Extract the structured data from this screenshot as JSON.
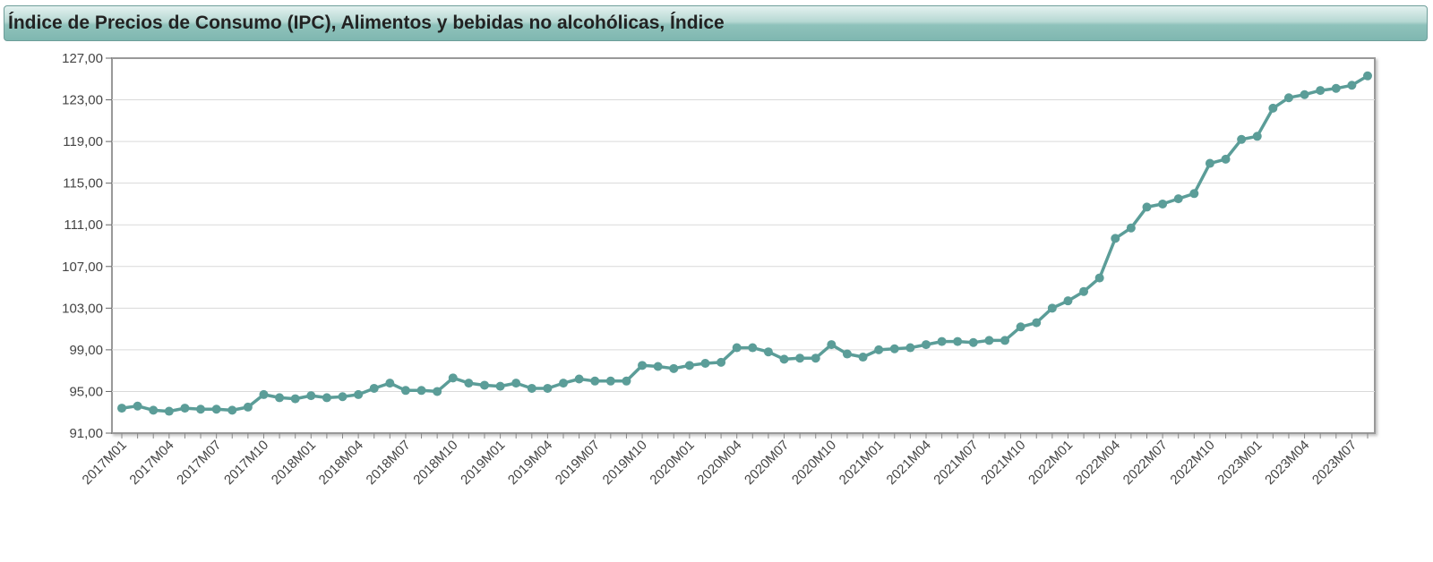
{
  "header": {
    "title": "Índice de Precios de Consumo (IPC), Alimentos y bebidas no alcohólicas, Índice"
  },
  "colors": {
    "series": "#5b9d98",
    "grid": "#d9d9d9",
    "frame": "#999999"
  },
  "chart_data": {
    "type": "line",
    "title": "Índice de Precios de Consumo (IPC), Alimentos y bebidas no alcohólicas, Índice",
    "xlabel": "",
    "ylabel": "",
    "ylim": [
      91,
      127
    ],
    "yticks": [
      "127,00",
      "123,00",
      "119,00",
      "115,00",
      "111,00",
      "107,00",
      "103,00",
      "99,00",
      "95,00",
      "91,00"
    ],
    "grid": true,
    "x": [
      "2017M01",
      "2017M02",
      "2017M03",
      "2017M04",
      "2017M05",
      "2017M06",
      "2017M07",
      "2017M08",
      "2017M09",
      "2017M10",
      "2017M11",
      "2017M12",
      "2018M01",
      "2018M02",
      "2018M03",
      "2018M04",
      "2018M05",
      "2018M06",
      "2018M07",
      "2018M08",
      "2018M09",
      "2018M10",
      "2018M11",
      "2018M12",
      "2019M01",
      "2019M02",
      "2019M03",
      "2019M04",
      "2019M05",
      "2019M06",
      "2019M07",
      "2019M08",
      "2019M09",
      "2019M10",
      "2019M11",
      "2019M12",
      "2020M01",
      "2020M02",
      "2020M03",
      "2020M04",
      "2020M05",
      "2020M06",
      "2020M07",
      "2020M08",
      "2020M09",
      "2020M10",
      "2020M11",
      "2020M12",
      "2021M01",
      "2021M02",
      "2021M03",
      "2021M04",
      "2021M05",
      "2021M06",
      "2021M07",
      "2021M08",
      "2021M09",
      "2021M10",
      "2021M11",
      "2021M12",
      "2022M01",
      "2022M02",
      "2022M03",
      "2022M04",
      "2022M05",
      "2022M06",
      "2022M07",
      "2022M08",
      "2022M09",
      "2022M10",
      "2022M11",
      "2022M12",
      "2023M01",
      "2023M02",
      "2023M03",
      "2023M04",
      "2023M05",
      "2023M06",
      "2023M07",
      "2023M08"
    ],
    "xtick_labels": [
      "2017M01",
      "2017M04",
      "2017M07",
      "2017M10",
      "2018M01",
      "2018M04",
      "2018M07",
      "2018M10",
      "2019M01",
      "2019M04",
      "2019M07",
      "2019M10",
      "2020M01",
      "2020M04",
      "2020M07",
      "2020M10",
      "2021M01",
      "2021M04",
      "2021M07",
      "2021M10",
      "2022M01",
      "2022M04",
      "2022M07",
      "2022M10",
      "2023M01",
      "2023M04",
      "2023M07"
    ],
    "series": [
      {
        "values": [
          93.4,
          93.6,
          93.2,
          93.1,
          93.4,
          93.3,
          93.3,
          93.2,
          93.5,
          94.7,
          94.4,
          94.3,
          94.6,
          94.4,
          94.5,
          94.7,
          95.3,
          95.8,
          95.1,
          95.1,
          95.0,
          96.3,
          95.8,
          95.6,
          95.5,
          95.8,
          95.3,
          95.3,
          95.8,
          96.2,
          96.0,
          96.0,
          96.0,
          97.5,
          97.4,
          97.2,
          97.5,
          97.7,
          97.8,
          99.2,
          99.2,
          98.8,
          98.1,
          98.2,
          98.2,
          99.5,
          98.6,
          98.3,
          99.0,
          99.1,
          99.2,
          99.5,
          99.8,
          99.8,
          99.7,
          99.9,
          99.9,
          101.2,
          101.6,
          103.0,
          103.7,
          104.6,
          105.9,
          109.7,
          110.7,
          112.7,
          113.0,
          113.5,
          114.0,
          116.9,
          117.3,
          119.2,
          119.5,
          122.2,
          123.2,
          123.5,
          123.9,
          124.1,
          124.4,
          125.3
        ]
      }
    ]
  }
}
